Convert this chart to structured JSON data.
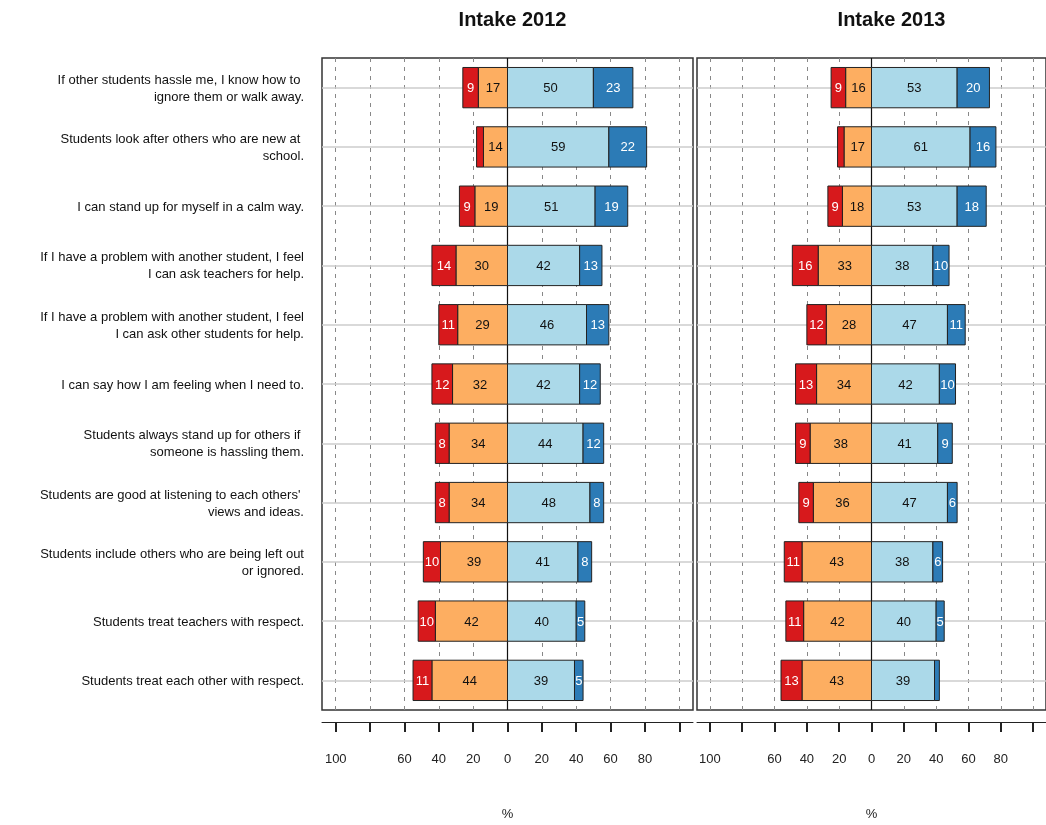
{
  "chart_data": [
    {
      "type": "bar",
      "title": "Intake 2012",
      "xlabel": "%",
      "orientation": "horizontal",
      "grid": true,
      "categories": [
        "If other students hassle me, I know how to ignore them or walk away.",
        "Students look after others who are new at school.",
        "I can stand up for myself in a calm way.",
        "If I have a problem with another student, I feel I can ask teachers for help.",
        "If I have a problem with another student, I feel I can ask other students for help.",
        "I can say how I am feeling when I need to.",
        "Students always stand up for others if someone is hassling them.",
        "Students are good at listening to each others' views and ideas.",
        "Students include others who are being left out or ignored.",
        "Students treat teachers with respect.",
        "Students treat each other with respect."
      ],
      "xlim": [
        -108,
        108
      ],
      "xticks": [
        {
          "value": -100,
          "label": "100"
        },
        {
          "value": -80,
          "label": null
        },
        {
          "value": -60,
          "label": "60"
        },
        {
          "value": -40,
          "label": "40"
        },
        {
          "value": -20,
          "label": "20"
        },
        0,
        20,
        40,
        60,
        80,
        {
          "value": 100,
          "label": null
        }
      ],
      "series": [
        {
          "color": "#fdae61",
          "values": [
            17,
            14,
            19,
            30,
            29,
            32,
            34,
            34,
            39,
            42,
            44
          ],
          "base": [
            -17,
            -14,
            -19,
            -30,
            -29,
            -32,
            -34,
            -34,
            -39,
            -42,
            -44
          ],
          "value_labels": [
            "17",
            "14",
            "19",
            "30",
            "29",
            "32",
            "34",
            "34",
            "39",
            "42",
            "44"
          ]
        },
        {
          "color": "#d7191c",
          "values": [
            9,
            4,
            9,
            14,
            11,
            12,
            8,
            8,
            10,
            10,
            11
          ],
          "base": [
            -26,
            -18,
            -28,
            -44,
            -40,
            -44,
            -42,
            -42,
            -49,
            -52,
            -55
          ],
          "value_labels": [
            "9",
            null,
            "9",
            "14",
            "11",
            "12",
            "8",
            "8",
            "10",
            "10",
            "11"
          ]
        },
        {
          "color": "#abd9e9",
          "values": [
            50,
            59,
            51,
            42,
            46,
            42,
            44,
            48,
            41,
            40,
            39
          ],
          "base": [
            0,
            0,
            0,
            0,
            0,
            0,
            0,
            0,
            0,
            0,
            0
          ],
          "value_labels": [
            "50",
            "59",
            "51",
            "42",
            "46",
            "42",
            "44",
            "48",
            "41",
            "40",
            "39"
          ]
        },
        {
          "color": "#2c7bb6",
          "values": [
            23,
            22,
            19,
            13,
            13,
            12,
            12,
            8,
            8,
            5,
            5
          ],
          "base": [
            50,
            59,
            51,
            42,
            46,
            42,
            44,
            48,
            41,
            40,
            39
          ],
          "value_labels": [
            "23",
            "22",
            "19",
            "13",
            "13",
            "12",
            "12",
            "8",
            "8",
            "5",
            "5"
          ]
        }
      ]
    },
    {
      "type": "bar",
      "title": "Intake 2013",
      "xlabel": "%",
      "orientation": "horizontal",
      "grid": true,
      "tick_labels": "x",
      "categories": [
        null,
        null,
        null,
        null,
        null,
        null,
        null,
        null,
        null,
        null,
        null
      ],
      "xlim": [
        -108,
        108
      ],
      "xticks": [
        {
          "value": -100,
          "label": "100"
        },
        {
          "value": -80,
          "label": null
        },
        {
          "value": -60,
          "label": "60"
        },
        {
          "value": -40,
          "label": "40"
        },
        {
          "value": -20,
          "label": "20"
        },
        0,
        20,
        40,
        60,
        80,
        {
          "value": 100,
          "label": null
        }
      ],
      "series": [
        {
          "color": "#fdae61",
          "values": [
            16,
            17,
            18,
            33,
            28,
            34,
            38,
            36,
            43,
            42,
            43
          ],
          "base": [
            -16,
            -17,
            -18,
            -33,
            -28,
            -34,
            -38,
            -36,
            -43,
            -42,
            -43
          ],
          "value_labels": [
            "16",
            "17",
            "18",
            "33",
            "28",
            "34",
            "38",
            "36",
            "43",
            "42",
            "43"
          ]
        },
        {
          "color": "#d7191c",
          "values": [
            9,
            4,
            9,
            16,
            12,
            13,
            9,
            9,
            11,
            11,
            13
          ],
          "base": [
            -25,
            -21,
            -27,
            -49,
            -40,
            -47,
            -47,
            -45,
            -54,
            -53,
            -56
          ],
          "value_labels": [
            "9",
            null,
            "9",
            "16",
            "12",
            "13",
            "9",
            "9",
            "11",
            "11",
            "13"
          ]
        },
        {
          "color": "#abd9e9",
          "values": [
            53,
            61,
            53,
            38,
            47,
            42,
            41,
            47,
            38,
            40,
            39
          ],
          "base": [
            0,
            0,
            0,
            0,
            0,
            0,
            0,
            0,
            0,
            0,
            0
          ],
          "value_labels": [
            "53",
            "61",
            "53",
            "38",
            "47",
            "42",
            "41",
            "47",
            "38",
            "40",
            "39"
          ]
        },
        {
          "color": "#2c7bb6",
          "values": [
            20,
            16,
            18,
            10,
            11,
            10,
            9,
            6,
            6,
            5,
            3
          ],
          "base": [
            53,
            61,
            53,
            38,
            47,
            42,
            41,
            47,
            38,
            40,
            39
          ],
          "value_labels": [
            "20",
            "16",
            "18",
            "10",
            "11",
            "10",
            "9",
            "6",
            "6",
            "5",
            null
          ]
        }
      ]
    }
  ]
}
